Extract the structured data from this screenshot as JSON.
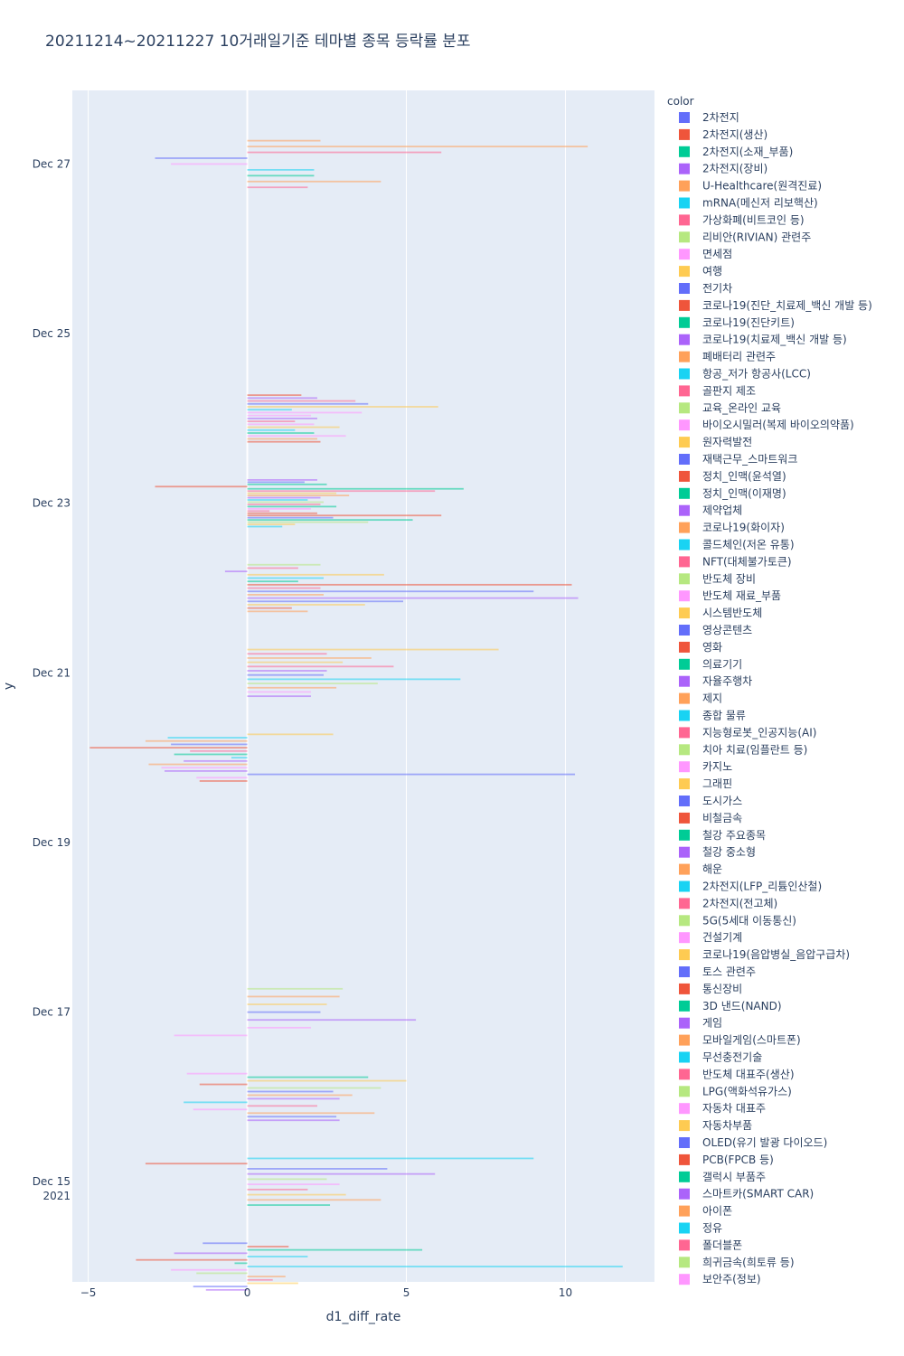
{
  "chart_data": {
    "type": "bar",
    "orientation": "horizontal",
    "barmode": "overlay",
    "title": "20211214~20211227 10거래일기준 테마별 종목 등락률 분포",
    "xlabel": "d1_diff_rate",
    "ylabel": "y",
    "xlim": [
      -5.5,
      12.8
    ],
    "ylim": [
      "2021-12-13 19:40",
      "2021-12-27 20:50"
    ],
    "x_ticks": [
      {
        "value": -5,
        "label": "−5"
      },
      {
        "value": 0,
        "label": "0"
      },
      {
        "value": 5,
        "label": "5"
      },
      {
        "value": 10,
        "label": "10"
      }
    ],
    "y_ticks": [
      {
        "value": "2021-12-15",
        "label": "Dec 15",
        "sublabel": "2021"
      },
      {
        "value": "2021-12-17",
        "label": "Dec 17",
        "sublabel": ""
      },
      {
        "value": "2021-12-19",
        "label": "Dec 19",
        "sublabel": ""
      },
      {
        "value": "2021-12-21",
        "label": "Dec 21",
        "sublabel": ""
      },
      {
        "value": "2021-12-23",
        "label": "Dec 23",
        "sublabel": ""
      },
      {
        "value": "2021-12-25",
        "label": "Dec 25",
        "sublabel": ""
      },
      {
        "value": "2021-12-27",
        "label": "Dec 27",
        "sublabel": ""
      }
    ],
    "grid": true,
    "legend_title": "color",
    "legend_position": "right",
    "palette": [
      "#636efa",
      "#EF553B",
      "#00cc96",
      "#ab63fa",
      "#FFA15A",
      "#19d3f3",
      "#FF6692",
      "#B6E880",
      "#FF97FF",
      "#FECB52"
    ],
    "series": [
      {
        "name": "2차전지"
      },
      {
        "name": "2차전지(생산)"
      },
      {
        "name": "2차전지(소재_부품)"
      },
      {
        "name": "2차전지(장비)"
      },
      {
        "name": "U-Healthcare(원격진료)"
      },
      {
        "name": "mRNA(메신저 리보핵산)"
      },
      {
        "name": "가상화폐(비트코인 등)"
      },
      {
        "name": "리비안(RIVIAN) 관련주"
      },
      {
        "name": "면세점"
      },
      {
        "name": "여행"
      },
      {
        "name": "전기차"
      },
      {
        "name": "코로나19(진단_치료제_백신 개발 등)"
      },
      {
        "name": "코로나19(진단키트)"
      },
      {
        "name": "코로나19(치료제_백신 개발 등)"
      },
      {
        "name": "폐배터리 관련주"
      },
      {
        "name": "항공_저가 항공사(LCC)"
      },
      {
        "name": "골판지 제조"
      },
      {
        "name": "교육_온라인 교육"
      },
      {
        "name": "바이오시밀러(복제 바이오의약품)"
      },
      {
        "name": "원자력발전"
      },
      {
        "name": "재택근무_스마트워크"
      },
      {
        "name": "정치_인맥(윤석열)"
      },
      {
        "name": "정치_인맥(이재명)"
      },
      {
        "name": "제약업체"
      },
      {
        "name": "코로나19(화이자)"
      },
      {
        "name": "콜드체인(저온 유통)"
      },
      {
        "name": "NFT(대체불가토큰)"
      },
      {
        "name": "반도체 장비"
      },
      {
        "name": "반도체 재료_부품"
      },
      {
        "name": "시스템반도체"
      },
      {
        "name": "영상콘텐츠"
      },
      {
        "name": "영화"
      },
      {
        "name": "의료기기"
      },
      {
        "name": "자율주행차"
      },
      {
        "name": "제지"
      },
      {
        "name": "종합 물류"
      },
      {
        "name": "지능형로봇_인공지능(AI)"
      },
      {
        "name": "치아 치료(임플란트 등)"
      },
      {
        "name": "카지노"
      },
      {
        "name": "그래핀"
      },
      {
        "name": "도시가스"
      },
      {
        "name": "비철금속"
      },
      {
        "name": "철강 주요종목"
      },
      {
        "name": "철강 중소형"
      },
      {
        "name": "해운"
      },
      {
        "name": "2차전지(LFP_리튬인산철)"
      },
      {
        "name": "2차전지(전고체)"
      },
      {
        "name": "5G(5세대 이동통신)"
      },
      {
        "name": "건설기계"
      },
      {
        "name": "코로나19(음압병실_음압구급차)"
      },
      {
        "name": "토스 관련주"
      },
      {
        "name": "통신장비"
      },
      {
        "name": "3D 낸드(NAND)"
      },
      {
        "name": "게임"
      },
      {
        "name": "모바일게임(스마트폰)"
      },
      {
        "name": "무선충전기술"
      },
      {
        "name": "반도체 대표주(생산)"
      },
      {
        "name": "LPG(액화석유가스)"
      },
      {
        "name": "자동차 대표주"
      },
      {
        "name": "자동차부품"
      },
      {
        "name": "OLED(유기 발광 다이오드)"
      },
      {
        "name": "PCB(FPCB 등)"
      },
      {
        "name": "갤럭시 부품주"
      },
      {
        "name": "스마트카(SMART CAR)"
      },
      {
        "name": "아이폰"
      },
      {
        "name": "정유"
      },
      {
        "name": "폴더블폰"
      },
      {
        "name": "희귀금속(희토류 등)"
      },
      {
        "name": "보안주(정보)"
      }
    ],
    "day_groups": [
      {
        "date": "2021-12-14",
        "bars": [
          [
            -1.4,
            0
          ],
          [
            1.3,
            1
          ],
          [
            5.5,
            2
          ],
          [
            -2.3,
            3
          ],
          [
            1.9,
            5
          ],
          [
            -3.5,
            1
          ],
          [
            -0.4,
            2
          ],
          [
            11.8,
            5
          ],
          [
            -2.4,
            8
          ],
          [
            -1.6,
            7
          ],
          [
            1.2,
            4
          ],
          [
            0.8,
            6
          ],
          [
            1.6,
            9
          ],
          [
            -1.7,
            0
          ],
          [
            -1.3,
            3
          ]
        ]
      },
      {
        "date": "2021-12-15",
        "bars": [
          [
            9.0,
            5
          ],
          [
            -3.2,
            1
          ],
          [
            4.4,
            0
          ],
          [
            5.9,
            3
          ],
          [
            2.5,
            7
          ],
          [
            2.9,
            8
          ],
          [
            1.9,
            6
          ],
          [
            3.1,
            9
          ],
          [
            4.2,
            4
          ],
          [
            2.6,
            2
          ]
        ]
      },
      {
        "date": "2021-12-16",
        "bars": [
          [
            -1.9,
            8
          ],
          [
            3.8,
            2
          ],
          [
            5.0,
            9
          ],
          [
            -1.5,
            1
          ],
          [
            4.2,
            7
          ],
          [
            2.7,
            0
          ],
          [
            3.3,
            4
          ],
          [
            2.9,
            3
          ],
          [
            -2.0,
            5
          ],
          [
            2.2,
            6
          ],
          [
            -1.7,
            8
          ],
          [
            4.0,
            4
          ],
          [
            2.8,
            0
          ],
          [
            2.9,
            3
          ]
        ]
      },
      {
        "date": "2021-12-17",
        "bars": [
          [
            3.0,
            7
          ],
          [
            2.9,
            4
          ],
          [
            2.5,
            9
          ],
          [
            2.3,
            0
          ],
          [
            5.3,
            3
          ],
          [
            2.0,
            8
          ],
          [
            -2.3,
            8
          ]
        ]
      },
      {
        "date": "2021-12-20",
        "bars": [
          [
            2.7,
            9
          ],
          [
            -2.5,
            5
          ],
          [
            -3.2,
            4
          ],
          [
            -2.4,
            0
          ],
          [
            -4.95,
            1
          ],
          [
            -1.8,
            6
          ],
          [
            -2.3,
            2
          ],
          [
            -0.5,
            5
          ],
          [
            -2.0,
            3
          ],
          [
            -3.1,
            4
          ],
          [
            -2.7,
            8
          ],
          [
            -2.6,
            3
          ],
          [
            10.3,
            0
          ],
          [
            -1.6,
            8
          ],
          [
            -1.5,
            1
          ]
        ]
      },
      {
        "date": "2021-12-21",
        "bars": [
          [
            7.9,
            9
          ],
          [
            2.5,
            6
          ],
          [
            3.9,
            4
          ],
          [
            3.0,
            9
          ],
          [
            4.6,
            6
          ],
          [
            2.5,
            3
          ],
          [
            2.4,
            0
          ],
          [
            6.7,
            5
          ],
          [
            4.1,
            7
          ],
          [
            2.8,
            4
          ],
          [
            2.0,
            8
          ],
          [
            2.0,
            3
          ]
        ]
      },
      {
        "date": "2021-12-22",
        "bars": [
          [
            2.3,
            7
          ],
          [
            1.6,
            6
          ],
          [
            -0.7,
            3
          ],
          [
            4.3,
            9
          ],
          [
            2.4,
            5
          ],
          [
            1.6,
            2
          ],
          [
            10.2,
            1
          ],
          [
            2.3,
            6
          ],
          [
            9.0,
            0
          ],
          [
            2.4,
            4
          ],
          [
            10.4,
            3
          ],
          [
            4.9,
            0
          ],
          [
            3.7,
            9
          ],
          [
            1.4,
            1
          ],
          [
            1.9,
            4
          ]
        ]
      },
      {
        "date": "2021-12-23",
        "bars": [
          [
            2.2,
            3
          ],
          [
            1.8,
            0
          ],
          [
            2.5,
            2
          ],
          [
            -2.9,
            1
          ],
          [
            6.8,
            2
          ],
          [
            5.9,
            6
          ],
          [
            2.8,
            9
          ],
          [
            3.2,
            4
          ],
          [
            2.3,
            3
          ],
          [
            1.9,
            5
          ],
          [
            2.4,
            7
          ],
          [
            2.3,
            6
          ],
          [
            2.8,
            2
          ],
          [
            2.0,
            8
          ],
          [
            0.7,
            6
          ],
          [
            2.2,
            1
          ],
          [
            6.1,
            1
          ],
          [
            2.7,
            0
          ],
          [
            5.2,
            2
          ],
          [
            3.8,
            7
          ],
          [
            1.5,
            9
          ],
          [
            1.1,
            5
          ]
        ]
      },
      {
        "date": "2021-12-24",
        "bars": [
          [
            1.7,
            1
          ],
          [
            2.2,
            3
          ],
          [
            3.4,
            6
          ],
          [
            3.8,
            0
          ],
          [
            6.0,
            9
          ],
          [
            1.4,
            5
          ],
          [
            3.6,
            8
          ],
          [
            2.0,
            8
          ],
          [
            2.2,
            3
          ],
          [
            1.5,
            6
          ],
          [
            2.1,
            8
          ],
          [
            2.9,
            9
          ],
          [
            1.5,
            5
          ],
          [
            2.1,
            2
          ],
          [
            3.1,
            8
          ],
          [
            2.2,
            4
          ],
          [
            2.3,
            1
          ]
        ]
      },
      {
        "date": "2021-12-27",
        "bars": [
          [
            2.3,
            4
          ],
          [
            10.7,
            4
          ],
          [
            6.1,
            6
          ],
          [
            -2.9,
            0
          ],
          [
            -2.4,
            8
          ],
          [
            2.1,
            5
          ],
          [
            2.1,
            2
          ],
          [
            4.2,
            4
          ],
          [
            1.9,
            6
          ]
        ]
      }
    ]
  }
}
